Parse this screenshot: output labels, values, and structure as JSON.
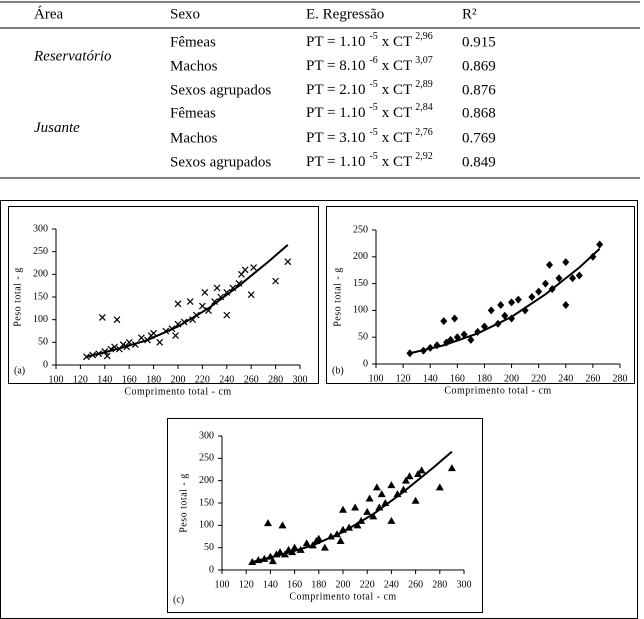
{
  "table": {
    "headers": [
      "Área",
      "Sexo",
      "E. Regressão",
      "R²"
    ],
    "groups": [
      {
        "area": "Reservatório",
        "rows": [
          {
            "sexo": "Fêmeas",
            "eq": {
              "base": "PT = 1.10",
              "exp_a": "-5",
              "mid": "x CT",
              "exp_b": "2,96"
            },
            "r2": "0.915"
          },
          {
            "sexo": "Machos",
            "eq": {
              "base": "PT = 8.10",
              "exp_a": "-6",
              "mid": "x CT",
              "exp_b": "3,07"
            },
            "r2": "0.869"
          },
          {
            "sexo": "Sexos agrupados",
            "eq": {
              "base": "PT = 2.10",
              "exp_a": "-5",
              "mid": "x CT",
              "exp_b": "2,89"
            },
            "r2": "0.876"
          }
        ]
      },
      {
        "area": "Jusante",
        "rows": [
          {
            "sexo": "Fêmeas",
            "eq": {
              "base": "PT = 1.10",
              "exp_a": "-5",
              "mid": "x CT",
              "exp_b": "2,84"
            },
            "r2": "0.868"
          },
          {
            "sexo": "Machos",
            "eq": {
              "base": "PT = 3.10",
              "exp_a": "-5",
              "mid": "x CT",
              "exp_b": "2,76"
            },
            "r2": "0.769"
          },
          {
            "sexo": "Sexos agrupados",
            "eq": {
              "base": "PT = 1.10",
              "exp_a": "-5",
              "mid": "x CT",
              "exp_b": "2,92"
            },
            "r2": "0.849"
          }
        ]
      }
    ]
  },
  "chart_data": [
    {
      "type": "scatter",
      "panel_label": "(a)",
      "x_label": "Comprimento total - cm",
      "y_label": "Peso total - g",
      "xlim": [
        100,
        300
      ],
      "ylim": [
        0,
        300
      ],
      "xticks": [
        100,
        120,
        140,
        160,
        180,
        200,
        220,
        240,
        260,
        280,
        300
      ],
      "yticks": [
        0,
        50,
        100,
        150,
        200,
        250,
        300
      ],
      "series": [
        {
          "marker": "x",
          "color": "#000000",
          "x": [
            125,
            130,
            135,
            138,
            140,
            142,
            145,
            148,
            150,
            152,
            155,
            158,
            160,
            165,
            170,
            175,
            178,
            180,
            185,
            190,
            195,
            198,
            200,
            200,
            205,
            210,
            212,
            215,
            220,
            222,
            225,
            230,
            232,
            235,
            240,
            240,
            245,
            250,
            252,
            255,
            260,
            262,
            280,
            290
          ],
          "values": [
            18,
            22,
            25,
            105,
            30,
            20,
            35,
            40,
            100,
            35,
            45,
            40,
            50,
            45,
            60,
            55,
            65,
            70,
            50,
            75,
            80,
            65,
            90,
            135,
            95,
            140,
            100,
            110,
            130,
            160,
            120,
            140,
            170,
            150,
            160,
            110,
            170,
            180,
            200,
            210,
            155,
            215,
            185,
            228
          ]
        }
      ],
      "trend": {
        "x": [
          125,
          150,
          175,
          200,
          225,
          250,
          275,
          290
        ],
        "values": [
          18,
          35,
          55,
          85,
          125,
          175,
          230,
          265
        ]
      }
    },
    {
      "type": "scatter",
      "panel_label": "(b)",
      "x_label": "Comprimento total - cm",
      "y_label": "Peso total - g",
      "xlim": [
        100,
        280
      ],
      "ylim": [
        0,
        250
      ],
      "xticks": [
        100,
        120,
        140,
        160,
        180,
        200,
        220,
        240,
        260,
        280
      ],
      "yticks": [
        0,
        50,
        100,
        150,
        200,
        250
      ],
      "series": [
        {
          "marker": "diamond",
          "color": "#000000",
          "x": [
            125,
            135,
            140,
            145,
            150,
            152,
            155,
            158,
            160,
            165,
            170,
            175,
            180,
            185,
            190,
            192,
            195,
            200,
            200,
            205,
            210,
            215,
            220,
            225,
            228,
            230,
            235,
            240,
            240,
            245,
            250,
            260,
            265
          ],
          "values": [
            20,
            25,
            30,
            35,
            80,
            40,
            45,
            85,
            50,
            55,
            45,
            60,
            70,
            100,
            75,
            110,
            90,
            115,
            85,
            120,
            100,
            125,
            135,
            150,
            185,
            140,
            160,
            190,
            110,
            160,
            165,
            200,
            223
          ]
        }
      ],
      "trend": {
        "x": [
          125,
          150,
          175,
          200,
          225,
          250,
          265
        ],
        "values": [
          20,
          35,
          57,
          88,
          130,
          180,
          215
        ]
      }
    },
    {
      "type": "scatter",
      "panel_label": "(c)",
      "x_label": "Comprimento total - cm",
      "y_label": "Peso total - g",
      "xlim": [
        100,
        300
      ],
      "ylim": [
        0,
        300
      ],
      "xticks": [
        100,
        120,
        140,
        160,
        180,
        200,
        220,
        240,
        260,
        280,
        300
      ],
      "yticks": [
        0,
        50,
        100,
        150,
        200,
        250,
        300
      ],
      "series": [
        {
          "marker": "triangle",
          "color": "#000000",
          "x": [
            125,
            130,
            135,
            138,
            140,
            142,
            145,
            148,
            150,
            152,
            155,
            158,
            160,
            165,
            170,
            175,
            178,
            180,
            185,
            190,
            195,
            198,
            200,
            200,
            205,
            210,
            212,
            215,
            220,
            222,
            225,
            228,
            230,
            232,
            235,
            240,
            240,
            245,
            250,
            252,
            255,
            260,
            262,
            265,
            280,
            290
          ],
          "values": [
            18,
            22,
            25,
            105,
            30,
            20,
            35,
            40,
            100,
            35,
            45,
            40,
            50,
            45,
            60,
            55,
            65,
            70,
            50,
            75,
            80,
            65,
            90,
            135,
            95,
            140,
            100,
            110,
            130,
            160,
            120,
            185,
            140,
            170,
            150,
            190,
            110,
            170,
            180,
            200,
            210,
            155,
            215,
            223,
            185,
            228
          ]
        }
      ],
      "trend": {
        "x": [
          125,
          150,
          175,
          200,
          225,
          250,
          275,
          290
        ],
        "values": [
          18,
          35,
          55,
          85,
          125,
          175,
          230,
          265
        ]
      }
    }
  ]
}
